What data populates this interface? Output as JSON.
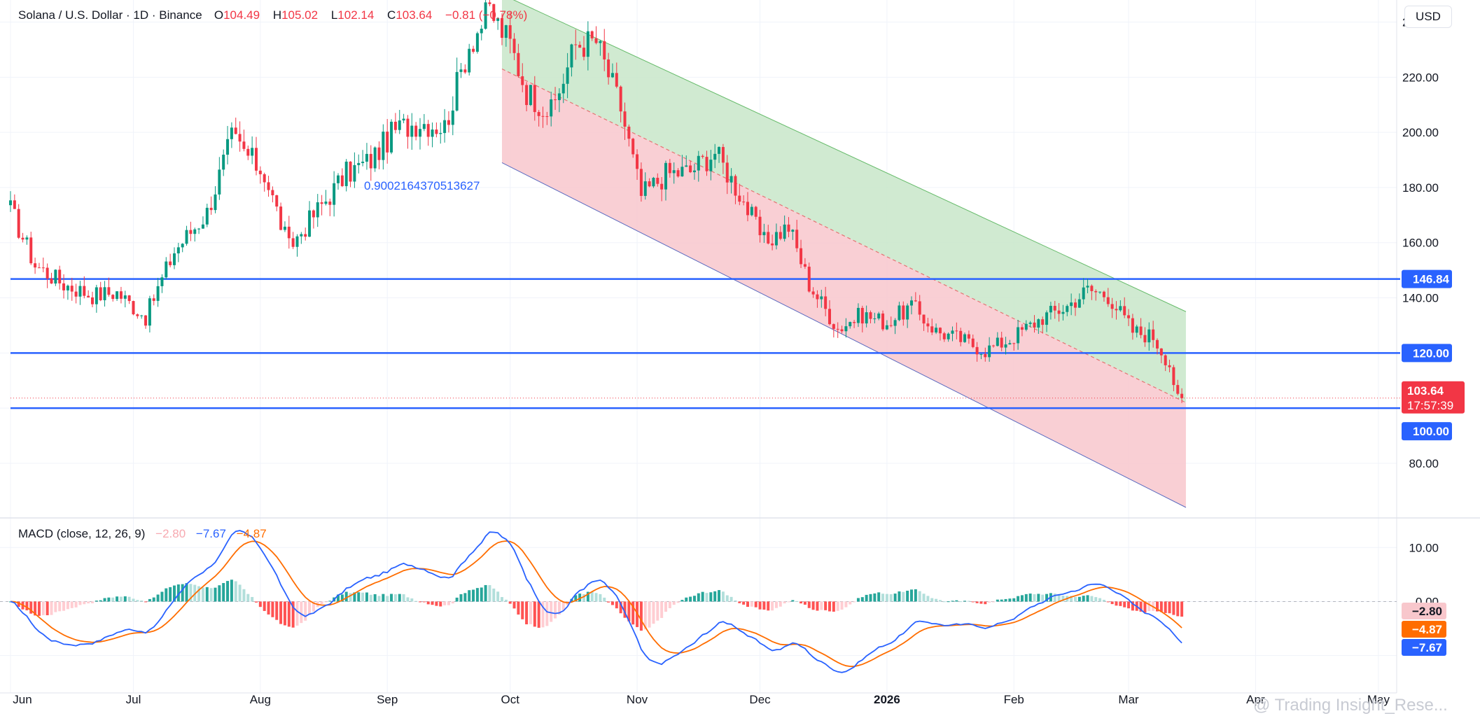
{
  "header": {
    "symbol": "Solana / U.S. Dollar · 1D · Binance",
    "open_label": "O",
    "open": "104.49",
    "high_label": "H",
    "high": "105.02",
    "low_label": "L",
    "low": "102.14",
    "close_label": "C",
    "close": "103.64",
    "change": "−0.81 (−0.78%)"
  },
  "currency": "USD",
  "macd_legend": {
    "title": "MACD (close, 12, 26, 9)",
    "hist": "−2.80",
    "macd": "−7.67",
    "signal": "−4.87"
  },
  "annotation": "0.9002164370513627",
  "watermark": "@ Trading Insight_Rese...",
  "colors": {
    "up": "#089981",
    "down": "#f23645",
    "line": "#2962ff",
    "signal": "#ff6d00",
    "channel_top": "#c8e6c9",
    "channel_bottom": "#f8c7cc"
  },
  "chart_data": [
    {
      "type": "candlestick",
      "title": "Solana / U.S. Dollar · 1D · Binance",
      "x_labels": [
        "Jun",
        "Jul",
        "Aug",
        "Sep",
        "Oct",
        "Nov",
        "Dec",
        "2026",
        "Feb",
        "Mar",
        "Apr",
        "May"
      ],
      "y_ticks": [
        "80.00",
        "140.00",
        "160.00",
        "180.00",
        "200.00",
        "220.00",
        "240.00"
      ],
      "ylim": [
        64,
        248
      ],
      "price_anchors": [
        [
          0,
          172
        ],
        [
          6,
          152
        ],
        [
          13,
          145
        ],
        [
          20,
          141
        ],
        [
          26,
          142
        ],
        [
          33,
          133
        ],
        [
          40,
          157
        ],
        [
          48,
          171
        ],
        [
          54,
          198
        ],
        [
          62,
          185
        ],
        [
          68,
          158
        ],
        [
          74,
          170
        ],
        [
          82,
          185
        ],
        [
          88,
          190
        ],
        [
          94,
          201
        ],
        [
          100,
          204
        ],
        [
          106,
          202
        ],
        [
          112,
          232
        ],
        [
          117,
          244
        ],
        [
          122,
          232
        ],
        [
          126,
          215
        ],
        [
          132,
          207
        ],
        [
          138,
          232
        ],
        [
          143,
          233
        ],
        [
          149,
          209
        ],
        [
          154,
          177
        ],
        [
          160,
          185
        ],
        [
          166,
          186
        ],
        [
          172,
          193
        ],
        [
          178,
          178
        ],
        [
          184,
          160
        ],
        [
          190,
          166
        ],
        [
          195,
          145
        ],
        [
          202,
          129
        ],
        [
          208,
          134
        ],
        [
          214,
          131
        ],
        [
          220,
          137
        ],
        [
          226,
          128
        ],
        [
          232,
          125
        ],
        [
          238,
          121
        ],
        [
          244,
          125
        ],
        [
          252,
          133
        ],
        [
          258,
          137
        ],
        [
          263,
          143
        ],
        [
          268,
          141
        ],
        [
          274,
          128
        ],
        [
          279,
          126
        ],
        [
          283,
          116
        ],
        [
          285,
          103
        ],
        [
          286,
          103.64
        ]
      ],
      "horizontal_levels": [
        {
          "value": 146.84,
          "label": "146.84"
        },
        {
          "value": 120.0,
          "label": "120.00"
        },
        {
          "value": 100.0,
          "label": "100.00"
        }
      ],
      "last_price": {
        "value": 103.64,
        "label": "103.64",
        "countdown": "17:57:39"
      },
      "regression_channel": {
        "start_index": 120,
        "end_index": 287,
        "upper": [
          250,
          135
        ],
        "mid": [
          223,
          102
        ],
        "lower": [
          189,
          64
        ],
        "label": "0.9002164370513627"
      }
    },
    {
      "type": "macd",
      "title": "MACD (close, 12, 26, 9)",
      "y_ticks": [
        "10.00",
        "0.00"
      ],
      "ylim": [
        -14.2,
        12.5
      ],
      "latest": {
        "histogram": -2.8,
        "macd": -7.67,
        "signal": -4.87
      },
      "value_labels": [
        "−2.80",
        "−4.87",
        "−7.67"
      ]
    }
  ]
}
